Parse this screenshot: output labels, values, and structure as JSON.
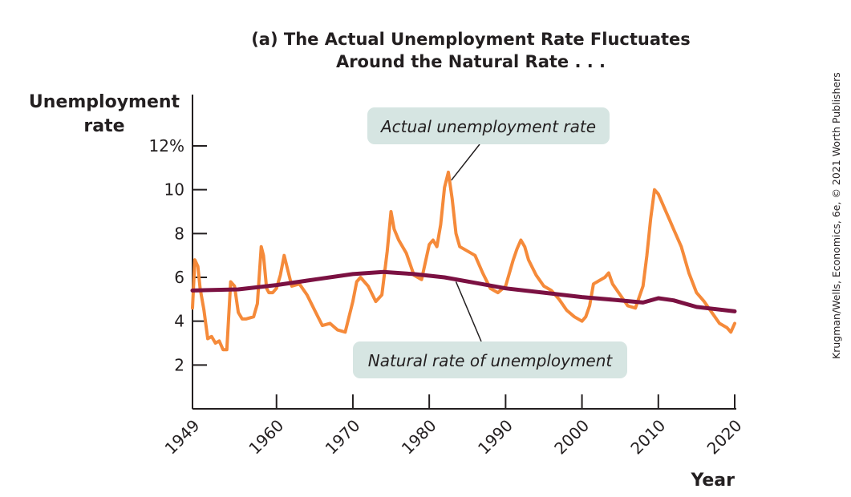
{
  "chart_data": {
    "type": "line",
    "title": [
      "(a) The Actual Unemployment Rate Fluctuates",
      "Around the Natural Rate . . ."
    ],
    "ylabel": [
      "Unemployment",
      "rate"
    ],
    "xlabel": "Year",
    "xlim": [
      1949,
      2020
    ],
    "ylim": [
      0,
      13
    ],
    "y_ticks": [
      {
        "value": 12,
        "label": "12%"
      },
      {
        "value": 10,
        "label": "10"
      },
      {
        "value": 8,
        "label": "8"
      },
      {
        "value": 6,
        "label": "6"
      },
      {
        "value": 4,
        "label": "4"
      },
      {
        "value": 2,
        "label": "2"
      }
    ],
    "x_ticks": [
      {
        "value": 1949,
        "label": "1949"
      },
      {
        "value": 1960,
        "label": "1960"
      },
      {
        "value": 1970,
        "label": "1970"
      },
      {
        "value": 1980,
        "label": "1980"
      },
      {
        "value": 1990,
        "label": "1990"
      },
      {
        "value": 2000,
        "label": "2000"
      },
      {
        "value": 2010,
        "label": "2010"
      },
      {
        "value": 2020,
        "label": "2020"
      }
    ],
    "grid": false,
    "series": [
      {
        "name": "Actual unemployment rate",
        "color": "#f58a3a",
        "x": [
          1949.0,
          1949.3,
          1949.7,
          1950.0,
          1950.5,
          1951.0,
          1951.5,
          1952.0,
          1952.5,
          1953.0,
          1953.5,
          1954.0,
          1954.5,
          1955.0,
          1955.5,
          1956.0,
          1957.0,
          1957.5,
          1958.0,
          1958.3,
          1958.7,
          1959.0,
          1959.5,
          1960.0,
          1960.5,
          1961.0,
          1961.5,
          1962.0,
          1963.0,
          1964.0,
          1965.0,
          1966.0,
          1967.0,
          1968.0,
          1969.0,
          1970.0,
          1970.5,
          1971.0,
          1972.0,
          1973.0,
          1973.8,
          1974.5,
          1975.0,
          1975.4,
          1976.0,
          1977.0,
          1978.0,
          1979.0,
          1980.0,
          1980.5,
          1981.0,
          1981.5,
          1982.0,
          1982.5,
          1983.0,
          1983.5,
          1984.0,
          1985.0,
          1986.0,
          1987.0,
          1988.0,
          1989.0,
          1990.0,
          1991.0,
          1991.5,
          1992.0,
          1992.5,
          1993.0,
          1994.0,
          1995.0,
          1996.0,
          1997.0,
          1998.0,
          1999.0,
          2000.0,
          2000.5,
          2001.0,
          2001.5,
          2002.0,
          2003.0,
          2003.5,
          2004.0,
          2005.0,
          2006.0,
          2007.0,
          2008.0,
          2008.5,
          2009.0,
          2009.5,
          2010.0,
          2011.0,
          2011.5,
          2012.0,
          2013.0,
          2014.0,
          2015.0,
          2016.0,
          2017.0,
          2018.0,
          2019.0,
          2019.5,
          2020.0
        ],
        "values": [
          4.6,
          6.8,
          6.5,
          5.5,
          4.5,
          3.2,
          3.3,
          3.0,
          3.1,
          2.7,
          2.7,
          5.8,
          5.6,
          4.4,
          4.1,
          4.1,
          4.2,
          4.8,
          7.4,
          7.0,
          5.5,
          5.3,
          5.3,
          5.5,
          6.1,
          7.0,
          6.3,
          5.6,
          5.7,
          5.2,
          4.5,
          3.8,
          3.9,
          3.6,
          3.5,
          4.9,
          5.8,
          6.0,
          5.6,
          4.9,
          5.2,
          7.2,
          9.0,
          8.2,
          7.7,
          7.1,
          6.1,
          5.9,
          7.5,
          7.7,
          7.4,
          8.4,
          10.1,
          10.8,
          9.6,
          8.0,
          7.4,
          7.2,
          7.0,
          6.2,
          5.5,
          5.3,
          5.6,
          6.8,
          7.3,
          7.7,
          7.4,
          6.8,
          6.1,
          5.6,
          5.4,
          5.0,
          4.5,
          4.2,
          4.0,
          4.2,
          4.7,
          5.7,
          5.8,
          6.0,
          6.2,
          5.7,
          5.2,
          4.7,
          4.6,
          5.6,
          7.0,
          8.7,
          10.0,
          9.8,
          9.0,
          8.6,
          8.2,
          7.4,
          6.2,
          5.3,
          4.9,
          4.4,
          3.9,
          3.7,
          3.5,
          3.9
        ]
      },
      {
        "name": "Natural rate of unemployment",
        "color": "#7b1142",
        "x": [
          1949,
          1955,
          1960,
          1965,
          1970,
          1974,
          1978,
          1982,
          1986,
          1990,
          1995,
          2000,
          2005,
          2008,
          2010,
          2012,
          2015,
          2020
        ],
        "values": [
          5.4,
          5.45,
          5.65,
          5.9,
          6.15,
          6.25,
          6.15,
          6.0,
          5.75,
          5.5,
          5.3,
          5.1,
          4.95,
          4.85,
          5.05,
          4.95,
          4.65,
          4.45
        ]
      }
    ],
    "annotations": [
      {
        "text": "Actual unemployment rate",
        "points_to": {
          "x": 1982.9,
          "y": 10.8
        }
      },
      {
        "text": "Natural rate of unemployment",
        "points_to": {
          "x": 1983.5,
          "y": 5.95
        }
      }
    ],
    "credit": "Krugman/Wells, Economics, 6e, © 2021 Worth Publishers"
  }
}
